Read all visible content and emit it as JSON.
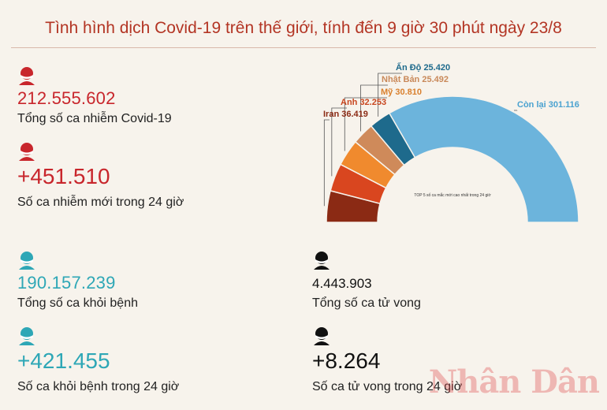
{
  "title": "Tình hình dịch Covid-19 trên thế giới, tính đến 9 giờ 30 phút ngày 23/8",
  "stats": {
    "total_cases": {
      "value": "212.555.602",
      "label": "Tổng số ca nhiễm Covid-19"
    },
    "new_cases": {
      "value": "+451.510",
      "label": "Số ca nhiễm mới trong 24 giờ"
    },
    "recovered": {
      "value": "190.157.239",
      "label": "Tổng số ca khỏi bệnh"
    },
    "new_recovered": {
      "value": "+421.455",
      "label": "Số ca khỏi bệnh trong 24 giờ"
    },
    "deaths": {
      "value": "4.443.903",
      "label": "Tổng số ca tử vong"
    },
    "new_deaths": {
      "value": "+8.264",
      "label": "Số ca tử vong trong 24 giờ"
    }
  },
  "chart_data": {
    "type": "pie",
    "subtitle": "TOP 5 số ca mắc mới cao nhất trong 24 giờ",
    "series": [
      {
        "name": "Iran",
        "value": 36419,
        "label": "Iran 36.419",
        "color": "#8b2a14"
      },
      {
        "name": "Anh",
        "value": 32253,
        "label": "Anh 32.253",
        "color": "#d9461f"
      },
      {
        "name": "Mỹ",
        "value": 30810,
        "label": "Mỹ 30.810",
        "color": "#f08a2e"
      },
      {
        "name": "Nhật Bản",
        "value": 25492,
        "label": "Nhật Bản 25.492",
        "color": "#cf8a5a"
      },
      {
        "name": "Ấn Độ",
        "value": 25420,
        "label": "Ấn Độ 25.420",
        "color": "#1e6a8c"
      },
      {
        "name": "Còn lại",
        "value": 301116,
        "label": "Còn lại 301.116",
        "color": "#6cb4dc"
      }
    ]
  },
  "watermark": "Nhân Dân",
  "colors": {
    "red": "#c8262c",
    "teal": "#2ea7b6",
    "black": "#111111",
    "title": "#b33524"
  }
}
